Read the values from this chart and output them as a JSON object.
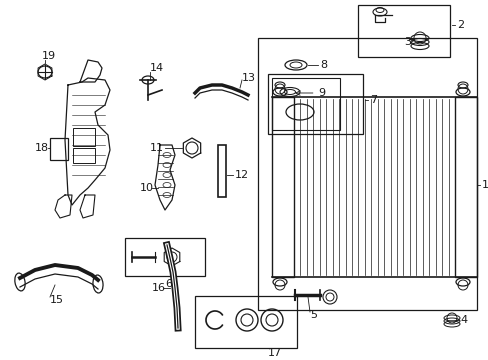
{
  "bg_color": "#ffffff",
  "lc": "#1a1a1a",
  "fig_width": 4.89,
  "fig_height": 3.6,
  "dpi": 100,
  "xlim": [
    0,
    489
  ],
  "ylim": [
    0,
    360
  ]
}
